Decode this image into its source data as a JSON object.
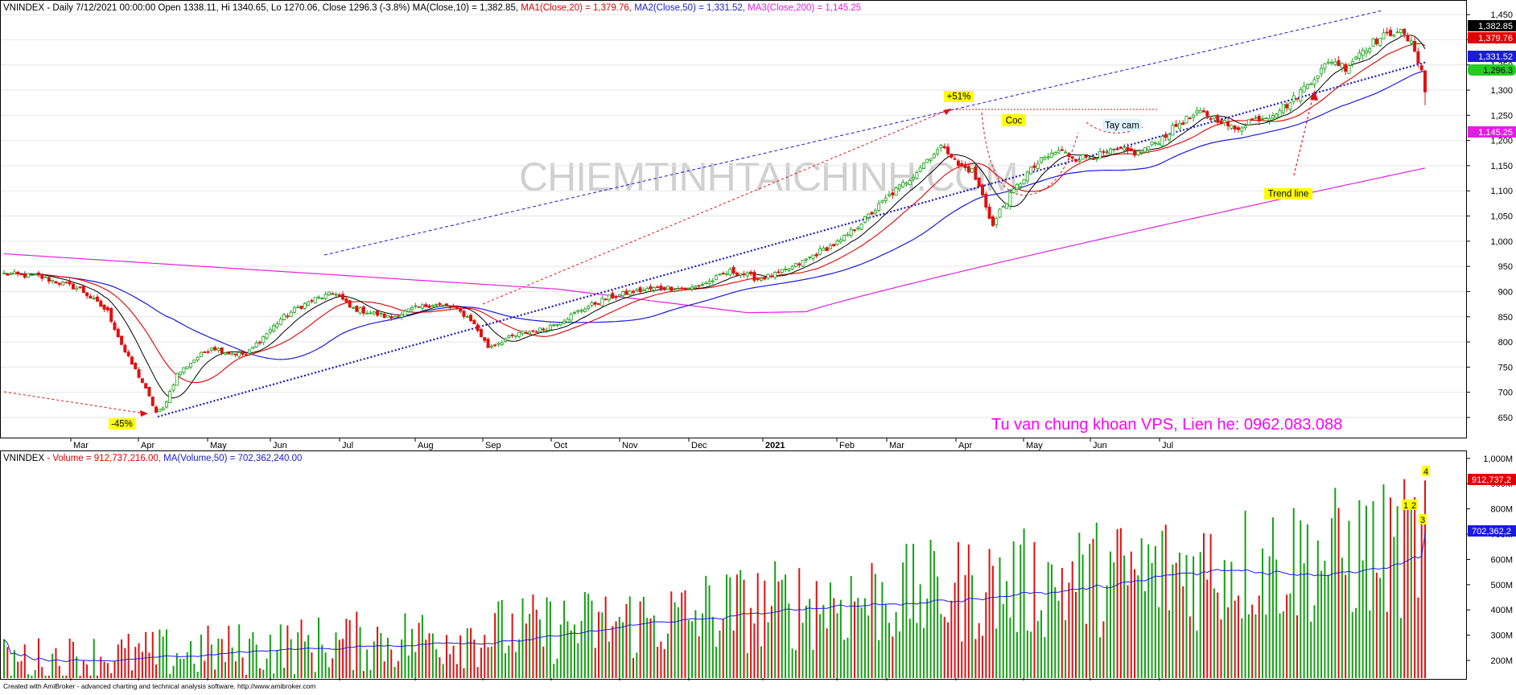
{
  "header": {
    "symbol": "VNINDEX",
    "info": " - Daily 7/12/2021 00:00:00 Open 1338.11, Hi 1340.65, Lo 1270.06, Close 1296.3 (-3.8%) ",
    "ma": "MA(Close,10) = 1,382.85, ",
    "ma1": "MA1(Close,20) = 1,379.76, ",
    "ma2": "MA2(Close,50) = 1,331.52, ",
    "ma3": "MA3(Close,200) = 1,145.25"
  },
  "volume_header": {
    "symbol": "VNINDEX",
    "volume": " - Volume = 912,737,216.00, ",
    "ma": "MA(Volume,50) = 702,362,240.00"
  },
  "watermark": "CHIEMTINHTAICHINH.COM",
  "advert": "Tu van chung khoan VPS, Lien he: 0962.083.088",
  "footer": "Created with AmiBroker - advanced charting and technical analysis software. http://www.amibroker.com",
  "colors": {
    "up": "#14a014",
    "down": "#e01010",
    "ma10": "#000000",
    "ma20": "#e00000",
    "ma50": "#1a1ae0",
    "ma200": "#e020e0",
    "trend": "#1a1acc",
    "annotation": "#e01010",
    "highlight": "#ffff00",
    "label_bg_cyan": "#dff4ff"
  },
  "chart_data": [
    {
      "type": "candlestick",
      "x_labels": [
        "Mar",
        "Apr",
        "May",
        "Jun",
        "Jul",
        "Aug",
        "Sep",
        "Oct",
        "Nov",
        "Dec",
        "2021",
        "Feb",
        "Mar",
        "Apr",
        "May",
        "Jun",
        "Jul"
      ],
      "y_ticks": [
        650,
        700,
        750,
        800,
        850,
        900,
        950,
        1000,
        1050,
        1100,
        1150,
        1200,
        1250,
        1300,
        1350,
        1400,
        1450
      ],
      "y_tick_labels": [
        "650",
        "700",
        "750",
        "800",
        "850",
        "900",
        "950",
        "1,000",
        "1,050",
        "1,100",
        "1,150",
        "1,200",
        "1,250",
        "1,300",
        "1,350",
        "1,400",
        "1,450"
      ],
      "ylim": [
        610,
        1455
      ],
      "close_anchors": [
        [
          0,
          935
        ],
        [
          10,
          930
        ],
        [
          22,
          905
        ],
        [
          30,
          860
        ],
        [
          35,
          780
        ],
        [
          40,
          720
        ],
        [
          44,
          660
        ],
        [
          46,
          667
        ],
        [
          50,
          735
        ],
        [
          55,
          765
        ],
        [
          60,
          790
        ],
        [
          65,
          778
        ],
        [
          70,
          775
        ],
        [
          75,
          810
        ],
        [
          80,
          845
        ],
        [
          85,
          868
        ],
        [
          90,
          885
        ],
        [
          96,
          898
        ],
        [
          100,
          868
        ],
        [
          106,
          858
        ],
        [
          112,
          848
        ],
        [
          118,
          865
        ],
        [
          124,
          875
        ],
        [
          130,
          868
        ],
        [
          135,
          845
        ],
        [
          140,
          790
        ],
        [
          145,
          805
        ],
        [
          150,
          818
        ],
        [
          156,
          825
        ],
        [
          162,
          845
        ],
        [
          168,
          868
        ],
        [
          175,
          888
        ],
        [
          182,
          900
        ],
        [
          190,
          908
        ],
        [
          198,
          905
        ],
        [
          204,
          920
        ],
        [
          210,
          940
        ],
        [
          214,
          935
        ],
        [
          218,
          925
        ],
        [
          224,
          935
        ],
        [
          230,
          955
        ],
        [
          236,
          980
        ],
        [
          242,
          1000
        ],
        [
          250,
          1050
        ],
        [
          256,
          1090
        ],
        [
          262,
          1125
        ],
        [
          268,
          1170
        ],
        [
          272,
          1190
        ],
        [
          276,
          1150
        ],
        [
          280,
          1140
        ],
        [
          283,
          1090
        ],
        [
          286,
          1030
        ],
        [
          288,
          1060
        ],
        [
          292,
          1100
        ],
        [
          296,
          1135
        ],
        [
          300,
          1160
        ],
        [
          305,
          1180
        ],
        [
          310,
          1165
        ],
        [
          316,
          1170
        ],
        [
          322,
          1180
        ],
        [
          328,
          1175
        ],
        [
          334,
          1200
        ],
        [
          340,
          1235
        ],
        [
          346,
          1255
        ],
        [
          352,
          1240
        ],
        [
          356,
          1220
        ],
        [
          360,
          1240
        ],
        [
          366,
          1250
        ],
        [
          372,
          1275
        ],
        [
          378,
          1320
        ],
        [
          384,
          1360
        ],
        [
          388,
          1345
        ],
        [
          392,
          1375
        ],
        [
          396,
          1395
        ],
        [
          400,
          1410
        ],
        [
          403,
          1420
        ],
        [
          406,
          1400
        ],
        [
          408,
          1380
        ],
        [
          410,
          1340
        ],
        [
          411,
          1296.3
        ]
      ],
      "series": [
        {
          "name": "MA(Close,10)",
          "value": 1382.85
        },
        {
          "name": "MA1(Close,20)",
          "value": 1379.76
        },
        {
          "name": "MA2(Close,50)",
          "value": 1331.52
        },
        {
          "name": "MA3(Close,200)",
          "value": 1145.25
        }
      ],
      "last_value_labels": [
        "1,382.85",
        "1,379.76",
        "1,331.52",
        "1,296.3",
        "1,145.25"
      ],
      "annotations": [
        "-45%",
        "+51%",
        "Coc",
        "Tay cam",
        "Trend line"
      ]
    },
    {
      "type": "bar",
      "title": "Volume",
      "y_ticks": [
        200,
        300,
        400,
        500,
        600,
        700,
        800,
        900,
        1000
      ],
      "y_tick_labels": [
        "200M",
        "300M",
        "400M",
        "500M",
        "600M",
        "700M",
        "800M",
        "900M",
        "1,000M"
      ],
      "ylim": [
        130,
        1025
      ],
      "unit": "M",
      "ma50_last": 702.36224,
      "last_volume": 912.737216,
      "last_value_labels": [
        "912,737,2",
        "702,362,2"
      ],
      "marker_labels": [
        "1",
        "2",
        "3",
        "4"
      ]
    }
  ]
}
